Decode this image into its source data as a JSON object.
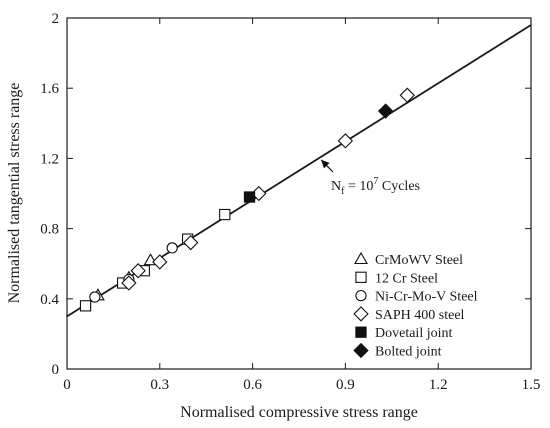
{
  "chart_data": {
    "type": "scatter",
    "xlabel": "Normalised compressive stress range",
    "ylabel": "Normalised tangential stress range",
    "xlim": [
      0,
      1.5
    ],
    "ylim": [
      0,
      2
    ],
    "x_ticks": [
      "0",
      "0.3",
      "0.6",
      "0.9",
      "1.2",
      "1.5"
    ],
    "y_ticks": [
      "0",
      "0.4",
      "0.8",
      "1.2",
      "1.6",
      "2"
    ],
    "grid": false,
    "legend_position": "bottom-right",
    "fit_line": {
      "x1": 0,
      "y1": 0.3,
      "x2": 1.5,
      "y2": 1.96
    },
    "annotation": {
      "base": "N",
      "sub": "f",
      "eq": " = 10",
      "sup": "7",
      "tail": " Cycles",
      "x": 0.825,
      "y": 1.18
    },
    "series": [
      {
        "name": "CrMoWV Steel",
        "marker": "triangle-open",
        "points": [
          [
            0.1,
            0.42
          ],
          [
            0.2,
            0.52
          ],
          [
            0.27,
            0.62
          ]
        ]
      },
      {
        "name": "12 Cr Steel",
        "marker": "square-open",
        "points": [
          [
            0.06,
            0.36
          ],
          [
            0.18,
            0.49
          ],
          [
            0.25,
            0.56
          ],
          [
            0.39,
            0.74
          ],
          [
            0.51,
            0.88
          ]
        ]
      },
      {
        "name": "Ni-Cr-Mo-V Steel",
        "marker": "circle-open",
        "points": [
          [
            0.09,
            0.41
          ],
          [
            0.2,
            0.51
          ],
          [
            0.34,
            0.69
          ]
        ]
      },
      {
        "name": "SAPH 400 steel",
        "marker": "diamond-open",
        "points": [
          [
            0.2,
            0.49
          ],
          [
            0.23,
            0.56
          ],
          [
            0.3,
            0.61
          ],
          [
            0.4,
            0.72
          ],
          [
            0.62,
            1.0
          ],
          [
            0.9,
            1.3
          ],
          [
            1.1,
            1.56
          ]
        ]
      },
      {
        "name": "Dovetail joint",
        "marker": "square-filled",
        "points": [
          [
            0.59,
            0.98
          ]
        ]
      },
      {
        "name": "Bolted joint",
        "marker": "diamond-filled",
        "points": [
          [
            1.03,
            1.47
          ]
        ]
      }
    ]
  }
}
